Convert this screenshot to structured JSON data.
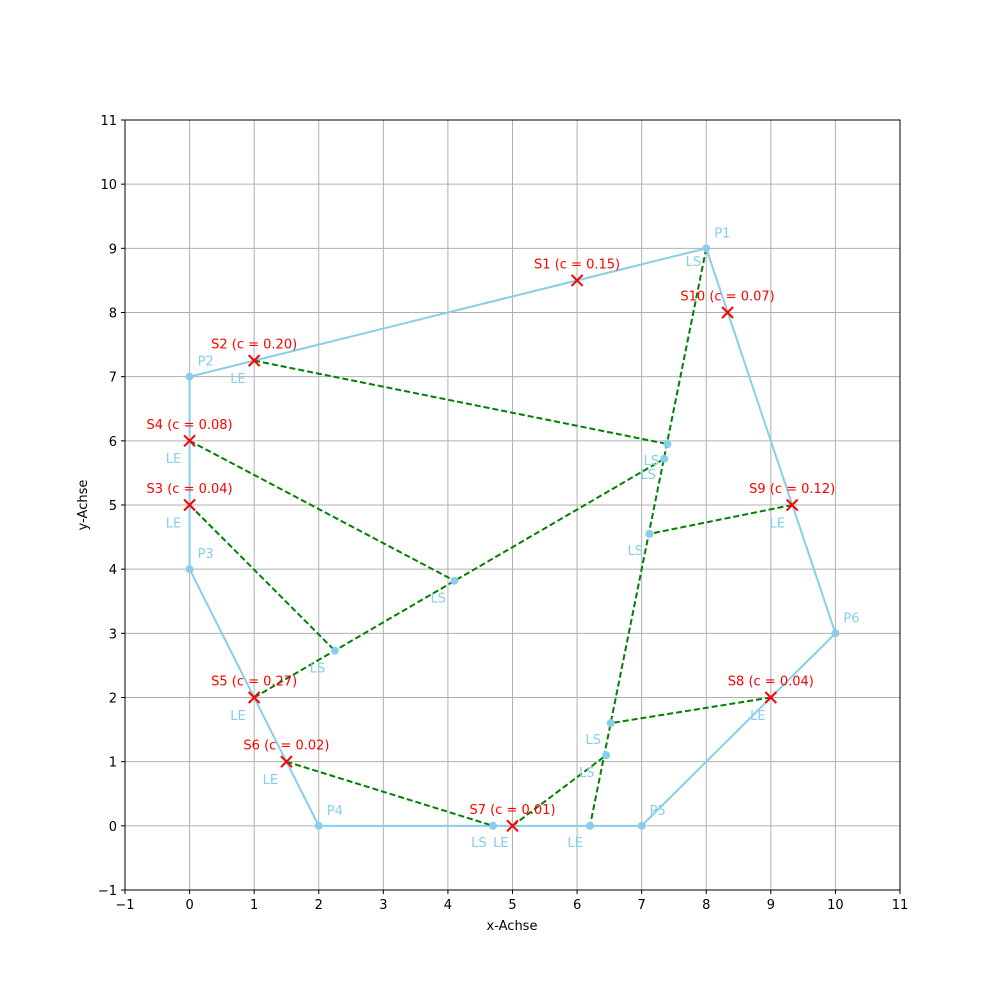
{
  "chart_data": {
    "type": "scatter",
    "title": "",
    "xlabel": "x-Achse",
    "ylabel": "y-Achse",
    "xlim": [
      -1,
      11
    ],
    "ylim": [
      -1,
      11
    ],
    "grid": true,
    "x_ticks": [
      -1,
      0,
      1,
      2,
      3,
      4,
      5,
      6,
      7,
      8,
      9,
      10,
      11
    ],
    "y_ticks": [
      -1,
      0,
      1,
      2,
      3,
      4,
      5,
      6,
      7,
      8,
      9,
      10,
      11
    ],
    "polygon": {
      "color": "#87ceeb",
      "vertices": [
        {
          "name": "P1",
          "x": 8,
          "y": 9
        },
        {
          "name": "P2",
          "x": 0,
          "y": 7
        },
        {
          "name": "P3",
          "x": 0,
          "y": 4
        },
        {
          "name": "P4",
          "x": 2,
          "y": 0
        },
        {
          "name": "P5",
          "x": 7,
          "y": 0
        },
        {
          "name": "P6",
          "x": 10,
          "y": 3
        }
      ]
    },
    "sensors": {
      "color": "#ff0000",
      "points": [
        {
          "label": "S1 (c = 0.15)",
          "x": 6,
          "y": 8.5
        },
        {
          "label": "S2 (c = 0.20)",
          "x": 1,
          "y": 7.25
        },
        {
          "label": "S3 (c = 0.04)",
          "x": 0,
          "y": 5
        },
        {
          "label": "S4 (c = 0.08)",
          "x": 0,
          "y": 6
        },
        {
          "label": "S5 (c = 0.27)",
          "x": 1,
          "y": 2
        },
        {
          "label": "S6 (c = 0.02)",
          "x": 1.5,
          "y": 1
        },
        {
          "label": "S7 (c = 0.01)",
          "x": 5,
          "y": 0
        },
        {
          "label": "S8 (c = 0.04)",
          "x": 9,
          "y": 2
        },
        {
          "label": "S9 (c = 0.12)",
          "x": 9.33,
          "y": 5
        },
        {
          "label": "S10 (c = 0.07)",
          "x": 8.33,
          "y": 8
        }
      ]
    },
    "links": {
      "color": "#008000",
      "style": "dashed",
      "segments": [
        {
          "x1": 1,
          "y1": 7.25,
          "x2": 7.4,
          "y2": 5.95
        },
        {
          "x1": 0,
          "y1": 6,
          "x2": 4.1,
          "y2": 3.82
        },
        {
          "x1": 0,
          "y1": 5,
          "x2": 2.25,
          "y2": 2.73
        },
        {
          "x1": 1,
          "y1": 2,
          "x2": 7.35,
          "y2": 5.72
        },
        {
          "x1": 1.5,
          "y1": 1,
          "x2": 4.7,
          "y2": 0
        },
        {
          "x1": 5,
          "y1": 0,
          "x2": 6.45,
          "y2": 1.1
        },
        {
          "x1": 9,
          "y1": 2,
          "x2": 6.52,
          "y2": 1.6
        },
        {
          "x1": 9.33,
          "y1": 5,
          "x2": 7.12,
          "y2": 4.55
        },
        {
          "x1": 8,
          "y1": 9,
          "x2": 6.2,
          "y2": 0
        }
      ]
    },
    "intersection_points": [
      {
        "x": 7.4,
        "y": 5.95
      },
      {
        "x": 7.35,
        "y": 5.72
      },
      {
        "x": 7.12,
        "y": 4.55
      },
      {
        "x": 4.1,
        "y": 3.82
      },
      {
        "x": 2.25,
        "y": 2.73
      },
      {
        "x": 6.52,
        "y": 1.6
      },
      {
        "x": 6.45,
        "y": 1.1
      },
      {
        "x": 4.7,
        "y": 0
      },
      {
        "x": 6.2,
        "y": 0
      }
    ],
    "annotations": [
      {
        "text": "LS",
        "x": 7.8,
        "y": 8.8
      },
      {
        "text": "LE",
        "x": 0.75,
        "y": 6.98
      },
      {
        "text": "LS",
        "x": 7.15,
        "y": 5.7
      },
      {
        "text": "LS",
        "x": 7.1,
        "y": 5.48
      },
      {
        "text": "LE",
        "x": -0.25,
        "y": 5.73
      },
      {
        "text": "LE",
        "x": -0.25,
        "y": 4.73
      },
      {
        "text": "LS",
        "x": 6.9,
        "y": 4.3
      },
      {
        "text": "LS",
        "x": 3.85,
        "y": 3.56
      },
      {
        "text": "LS",
        "x": 1.98,
        "y": 2.47
      },
      {
        "text": "LE",
        "x": 0.75,
        "y": 1.73
      },
      {
        "text": "LS",
        "x": 6.25,
        "y": 1.35
      },
      {
        "text": "LS",
        "x": 6.15,
        "y": 0.84
      },
      {
        "text": "LE",
        "x": 1.25,
        "y": 0.73
      },
      {
        "text": "LE",
        "x": 8.8,
        "y": 1.73
      },
      {
        "text": "LE",
        "x": 9.1,
        "y": 4.73
      },
      {
        "text": "LS",
        "x": 4.48,
        "y": -0.25
      },
      {
        "text": "LE",
        "x": 4.82,
        "y": -0.25
      },
      {
        "text": "LE",
        "x": 5.97,
        "y": -0.25
      }
    ]
  }
}
